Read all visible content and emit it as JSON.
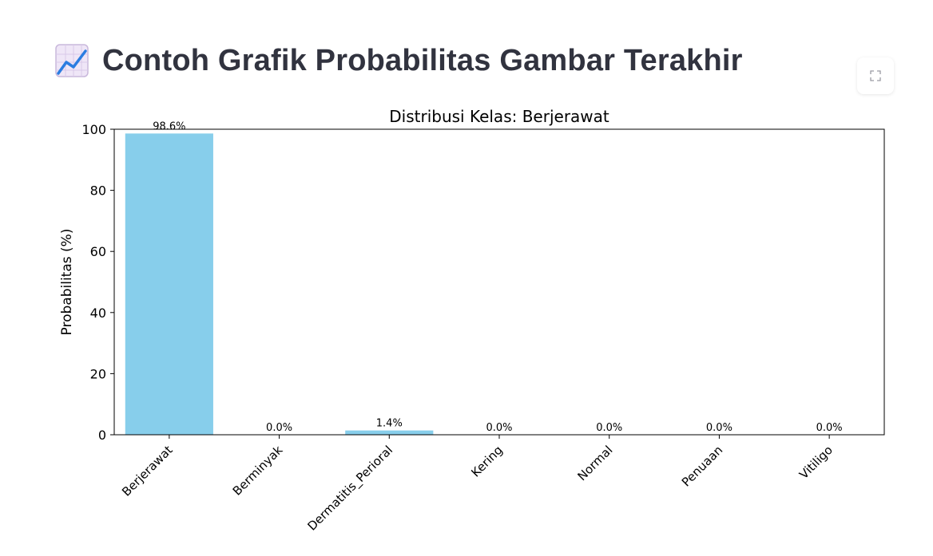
{
  "header": {
    "title": "Contoh Grafik Probabilitas Gambar Terakhir",
    "icon": "chart-increasing-icon"
  },
  "toolbar": {
    "fullscreen_icon": "fullscreen-icon"
  },
  "chart_data": {
    "type": "bar",
    "title": "Distribusi Kelas: Berjerawat",
    "xlabel": "",
    "ylabel": "Probabilitas (%)",
    "ylim": [
      0,
      100
    ],
    "yticks": [
      0,
      20,
      40,
      60,
      80,
      100
    ],
    "categories": [
      "Berjerawat",
      "Berminyak",
      "Dermatitis_Perioral",
      "Kering",
      "Normal",
      "Penuaan",
      "Vitiligo"
    ],
    "values": [
      98.6,
      0.0,
      1.4,
      0.0,
      0.0,
      0.0,
      0.0
    ],
    "data_labels": [
      "98.6%",
      "0.0%",
      "1.4%",
      "0.0%",
      "0.0%",
      "0.0%",
      "0.0%"
    ],
    "bar_color": "#87ceeb",
    "grid": false,
    "legend": "none"
  }
}
